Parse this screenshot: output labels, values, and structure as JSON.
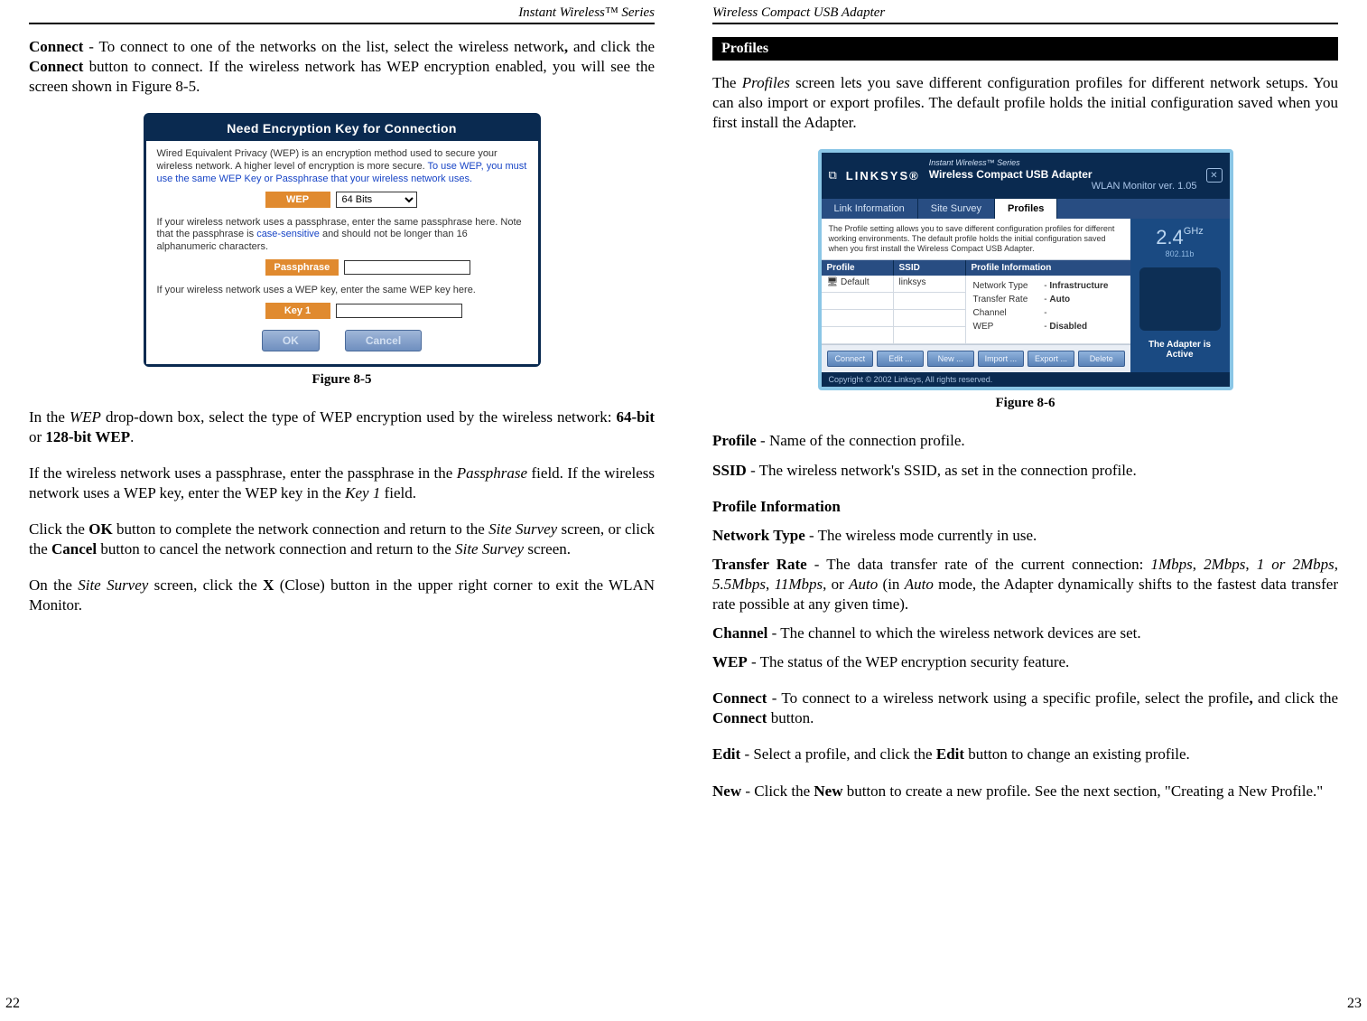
{
  "left": {
    "header": "Instant Wireless™ Series",
    "pageNum": "22",
    "p1_html": "<span class='b'>Connect</span> - To connect to one of the networks on the list, select the wireless network<span class='b'>,</span> and click the <span class='b'>Connect</span> button to connect. If the wireless network has WEP encryption enabled, you will see the screen shown in Figure 8-5.",
    "fig85": {
      "title": "Need Encryption Key for Connection",
      "blurb1_html": "Wired Equivalent Privacy (WEP) is an encryption method used to secure your wireless network. A higher level of encryption is more secure. <span class='link'>To use WEP, you must use the same WEP Key or Passphrase that your wireless network uses.</span>",
      "wep_label": "WEP",
      "wep_select": "64 Bits",
      "blurb2_html": "If your wireless network uses a passphrase, enter the same passphrase here. Note that the passphrase is <span class='link'>case-sensitive</span> and should not be longer than 16 alphanumeric characters.",
      "pass_label": "Passphrase",
      "blurb3": "If your wireless network uses a WEP key, enter the same WEP key here.",
      "key_label": "Key 1",
      "ok": "OK",
      "cancel": "Cancel",
      "caption": "Figure 8-5"
    },
    "p2_html": "In the <span class='i'>WEP</span> drop-down box, select the type of WEP encryption used by the wireless network: <span class='b'>64-bit</span> or <span class='b'>128-bit WEP</span>.",
    "p3_html": "If the wireless network uses a passphrase, enter the passphrase in the <span class='i'>Passphrase</span> field. If the wireless network uses a WEP key, enter the WEP key in the <span class='i'>Key 1</span> field.",
    "p4_html": "Click the <span class='b'>OK</span> button to complete the network connection and return to the <span class='i'>Site Survey</span> screen, or click the <span class='b'>Cancel</span> button to cancel the network connection and return to the <span class='i'>Site Survey</span> screen.",
    "p5_html": "On the <span class='i'>Site Survey</span> screen, click the <span class='b'>X</span> (Close) button in the upper right corner to exit the WLAN Monitor."
  },
  "right": {
    "header": "Wireless Compact USB Adapter",
    "pageNum": "23",
    "section": "Profiles",
    "p1_html": "The <span class='i'>Profiles</span> screen lets you save different configuration profiles for different network setups. You can also import or export profiles. The default profile holds the initial configuration saved when you first install the Adapter.",
    "fig86": {
      "logo": "LINKSYS®",
      "series": "Instant Wireless™ Series",
      "product": "Wireless Compact USB Adapter",
      "monitor": "WLAN Monitor  ver. 1.05",
      "tabs": [
        "Link Information",
        "Site Survey",
        "Profiles"
      ],
      "desc": "The Profile setting allows you to save different configuration profiles for different working environments. The default profile holds the initial configuration saved when you first install the Wireless Compact USB Adapter.",
      "th": [
        "Profile",
        "SSID",
        "Profile Information"
      ],
      "row_profile": "Default",
      "row_ssid": "linksys",
      "info": [
        {
          "lbl": "Network Type",
          "sep": "-",
          "val": "Infrastructure"
        },
        {
          "lbl": "Transfer Rate",
          "sep": "-",
          "val": "Auto"
        },
        {
          "lbl": "Channel",
          "sep": "-",
          "val": ""
        },
        {
          "lbl": "WEP",
          "sep": "-",
          "val": "Disabled"
        }
      ],
      "buttons": [
        "Connect",
        "Edit ...",
        "New ...",
        "Import ...",
        "Export ...",
        "Delete"
      ],
      "ghz": "2.4",
      "ghz_unit": "GHz",
      "band": "802.11b",
      "status": "The Adapter is Active",
      "footer": "Copyright © 2002 Linksys, All rights reserved.",
      "caption": "Figure 8-6"
    },
    "d1_html": "<span class='b'>Profile</span> - Name of the connection profile.",
    "d2_html": "<span class='b'>SSID</span> - The wireless network's SSID, as set in the connection profile.",
    "d3": "Profile Information",
    "d4_html": "<span class='b'>Network Type</span> - The wireless mode currently in use.",
    "d5_html": "<span class='b'>Transfer Rate</span> - The data transfer rate of the current connection: <span class='i'>1Mbps</span>, <span class='i'>2Mbps</span>, <span class='i'>1 or 2Mbps</span>, <span class='i'>5.5Mbps</span>, <span class='i'>11Mbps</span>, or <span class='i'>Auto</span> (in <span class='i'>Auto</span> mode, the Adapter dynamically shifts to the fastest data transfer rate possible at any given time).",
    "d6_html": "<span class='b'>Channel</span> - The channel to which the wireless network devices are set.",
    "d7_html": "<span class='b'>WEP</span> - The status of the WEP encryption security feature.",
    "d8_html": "<span class='b'>Connect</span> - To connect to a wireless network using a specific profile, select the profile<span class='b'>,</span> and click the <span class='b'>Connect</span> button.",
    "d9_html": "<span class='b'>Edit</span> - Select a profile, and click the <span class='b'>Edit</span> button to change an existing profile.",
    "d10_html": "<span class='b'>New</span> - Click the <span class='b'>New</span> button to create a new profile. See the next section, \"Creating a New Profile.\""
  }
}
